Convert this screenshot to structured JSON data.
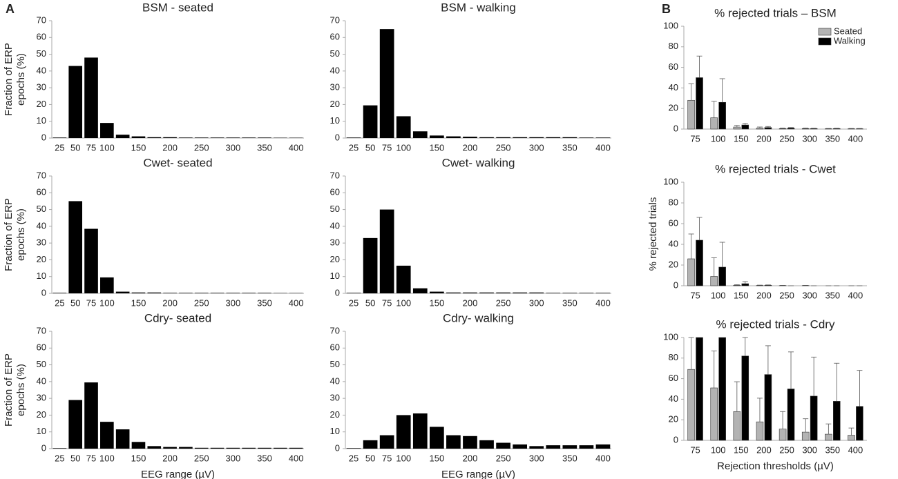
{
  "panel_labels": [
    "A",
    "B"
  ],
  "chart_data": [
    {
      "type": "bar",
      "title": "BSM - seated",
      "ylabel": [
        "Fraction of ERP",
        "epochs (%)"
      ],
      "categories": [
        "25",
        "50",
        "75",
        "100",
        null,
        "150",
        null,
        "200",
        null,
        "250",
        null,
        "300",
        null,
        "350",
        null,
        "400"
      ],
      "values": [
        0.3,
        43,
        48,
        9,
        2,
        1,
        0.5,
        0.5,
        0.3,
        0.3,
        0.3,
        0.3,
        0.3,
        0.3,
        0.2,
        0.2
      ],
      "color": "#000000",
      "ylim": [
        0,
        70
      ],
      "yticks": [
        0,
        10,
        20,
        30,
        40,
        50,
        60,
        70
      ]
    },
    {
      "type": "bar",
      "title": "BSM - walking",
      "categories": [
        "25",
        "50",
        "75",
        "100",
        null,
        "150",
        null,
        "200",
        null,
        "250",
        null,
        "300",
        null,
        "350",
        null,
        "400"
      ],
      "values": [
        0.3,
        19.5,
        65,
        13,
        4,
        1.5,
        1,
        0.8,
        0.5,
        0.5,
        0.5,
        0.5,
        0.5,
        0.5,
        0.3,
        0.3
      ],
      "color": "#000000",
      "ylim": [
        0,
        70
      ],
      "yticks": [
        0,
        10,
        20,
        30,
        40,
        50,
        60,
        70
      ]
    },
    {
      "type": "bar",
      "title": "Cwet- seated",
      "ylabel": [
        "Fraction of ERP",
        "epochs (%)"
      ],
      "categories": [
        "25",
        "50",
        "75",
        "100",
        null,
        "150",
        null,
        "200",
        null,
        "250",
        null,
        "300",
        null,
        "350",
        null,
        "400"
      ],
      "values": [
        0.3,
        55,
        38.5,
        9.5,
        1,
        0.5,
        0.5,
        0.3,
        0.3,
        0.3,
        0.3,
        0.3,
        0.3,
        0.3,
        0.2,
        0.2
      ],
      "color": "#000000",
      "ylim": [
        0,
        70
      ],
      "yticks": [
        0,
        10,
        20,
        30,
        40,
        50,
        60,
        70
      ]
    },
    {
      "type": "bar",
      "title": "Cwet- walking",
      "categories": [
        "25",
        "50",
        "75",
        "100",
        null,
        "150",
        null,
        "200",
        null,
        "250",
        null,
        "300",
        null,
        "350",
        null,
        "400"
      ],
      "values": [
        0.3,
        33,
        50,
        16.5,
        3,
        1,
        0.5,
        0.5,
        0.5,
        0.5,
        0.5,
        0.5,
        0.3,
        0.3,
        0.3,
        0.3
      ],
      "color": "#000000",
      "ylim": [
        0,
        70
      ],
      "yticks": [
        0,
        10,
        20,
        30,
        40,
        50,
        60,
        70
      ]
    },
    {
      "type": "bar",
      "title": "Cdry- seated",
      "ylabel": [
        "Fraction of ERP",
        "epochs (%)"
      ],
      "xlabel": "EEG range (µV)",
      "categories": [
        "25",
        "50",
        "75",
        "100",
        null,
        "150",
        null,
        "200",
        null,
        "250",
        null,
        "300",
        null,
        "350",
        null,
        "400"
      ],
      "values": [
        0.3,
        29,
        39.5,
        16,
        11.5,
        4,
        1.5,
        1,
        1,
        0.5,
        0.5,
        0.5,
        0.5,
        0.5,
        0.5,
        0.5
      ],
      "color": "#000000",
      "ylim": [
        0,
        70
      ],
      "yticks": [
        0,
        10,
        20,
        30,
        40,
        50,
        60,
        70
      ]
    },
    {
      "type": "bar",
      "title": "Cdry- walking",
      "xlabel": "EEG range (µV)",
      "categories": [
        "25",
        "50",
        "75",
        "100",
        null,
        "150",
        null,
        "200",
        null,
        "250",
        null,
        "300",
        null,
        "350",
        null,
        "400"
      ],
      "values": [
        0.3,
        5,
        8,
        20,
        21,
        13,
        8,
        7.5,
        5,
        3.5,
        2.5,
        1.5,
        2,
        2,
        2,
        2.5
      ],
      "color": "#000000",
      "ylim": [
        0,
        70
      ],
      "yticks": [
        0,
        10,
        20,
        30,
        40,
        50,
        60,
        70
      ]
    },
    {
      "type": "bar",
      "title": "% rejected trials – BSM",
      "legend": "upper right",
      "categories": [
        "75",
        "100",
        "150",
        "200",
        "250",
        "300",
        "350",
        "400"
      ],
      "series": [
        {
          "name": "Seated",
          "color": "#b3b3b3",
          "values": [
            28,
            11,
            2,
            1,
            0.5,
            0.5,
            0.3,
            0.3
          ],
          "errors": [
            16,
            16,
            1.5,
            1,
            0.5,
            0.5,
            0.3,
            0.3
          ]
        },
        {
          "name": "Walking",
          "color": "#000000",
          "values": [
            50,
            26,
            4,
            1.5,
            1,
            0.5,
            0.5,
            0.3
          ],
          "errors": [
            21,
            23,
            1.5,
            1,
            0.5,
            0.3,
            0.3,
            0.3
          ]
        }
      ],
      "ylim": [
        0,
        100
      ],
      "yticks": [
        0,
        20,
        40,
        60,
        80,
        100
      ]
    },
    {
      "type": "bar",
      "title": "% rejected trials - Cwet",
      "ylabel": "% rejected trials",
      "categories": [
        "75",
        "100",
        "150",
        "200",
        "250",
        "300",
        "350",
        "400"
      ],
      "series": [
        {
          "color": "#b3b3b3",
          "values": [
            26,
            9,
            0.5,
            0.3,
            0.2,
            0.2,
            0,
            0
          ],
          "errors": [
            24,
            18,
            0.5,
            0.3,
            0.2,
            0.2,
            0,
            0
          ]
        },
        {
          "color": "#000000",
          "values": [
            44,
            18,
            2,
            0.5,
            0,
            0,
            0,
            0
          ],
          "errors": [
            22,
            24,
            2,
            0.3,
            0,
            0,
            0,
            0
          ]
        }
      ],
      "ylim": [
        0,
        100
      ],
      "yticks": [
        0,
        20,
        40,
        60,
        80,
        100
      ]
    },
    {
      "type": "bar",
      "title": "% rejected trials - Cdry",
      "xlabel": "Rejection thresholds (µV)",
      "categories": [
        "75",
        "100",
        "150",
        "200",
        "250",
        "300",
        "350",
        "400"
      ],
      "series": [
        {
          "color": "#b3b3b3",
          "values": [
            69,
            51,
            28,
            18,
            11,
            8,
            6,
            5
          ],
          "errors": [
            31,
            36,
            29,
            23,
            17,
            13,
            10,
            7
          ]
        },
        {
          "color": "#000000",
          "values": [
            100,
            100,
            82,
            64,
            50,
            43,
            38,
            33
          ],
          "errors": [
            0,
            0,
            18,
            28,
            36,
            38,
            37,
            35
          ]
        }
      ],
      "ylim": [
        0,
        100
      ],
      "yticks": [
        0,
        20,
        40,
        60,
        80,
        100
      ]
    }
  ]
}
